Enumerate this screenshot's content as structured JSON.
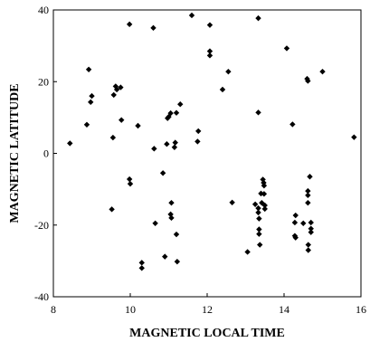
{
  "chart_data": {
    "type": "scatter",
    "title": "",
    "xlabel": "MAGNETIC LOCAL TIME",
    "ylabel": "MAGNETIC LATITUDE",
    "xlim": [
      8,
      16
    ],
    "ylim": [
      -40,
      40
    ],
    "xticks": [
      "8",
      "10",
      "12",
      "14",
      "16"
    ],
    "yticks": [
      "40",
      "20",
      "0",
      "-20",
      "-40"
    ],
    "grid": false,
    "legend": "none",
    "marker": "diamond",
    "marker_color": "#000000",
    "points": [
      {
        "x": 8.43,
        "y": 2.8
      },
      {
        "x": 8.87,
        "y": 8.0
      },
      {
        "x": 8.92,
        "y": 23.4
      },
      {
        "x": 8.97,
        "y": 14.3
      },
      {
        "x": 9.0,
        "y": 16.0
      },
      {
        "x": 9.52,
        "y": -15.6
      },
      {
        "x": 9.55,
        "y": 4.4
      },
      {
        "x": 9.57,
        "y": 16.3
      },
      {
        "x": 9.62,
        "y": 18.7
      },
      {
        "x": 9.65,
        "y": 17.8
      },
      {
        "x": 9.75,
        "y": 18.4
      },
      {
        "x": 9.77,
        "y": 9.3
      },
      {
        "x": 9.98,
        "y": 36.0
      },
      {
        "x": 9.98,
        "y": -7.2
      },
      {
        "x": 10.0,
        "y": -8.5
      },
      {
        "x": 10.2,
        "y": 7.7
      },
      {
        "x": 10.3,
        "y": -30.5
      },
      {
        "x": 10.3,
        "y": -32.0
      },
      {
        "x": 10.6,
        "y": 35.0
      },
      {
        "x": 10.62,
        "y": 1.3
      },
      {
        "x": 10.65,
        "y": -19.5
      },
      {
        "x": 10.85,
        "y": -5.5
      },
      {
        "x": 10.9,
        "y": -28.8
      },
      {
        "x": 10.95,
        "y": 2.6
      },
      {
        "x": 10.97,
        "y": 9.8
      },
      {
        "x": 11.0,
        "y": 10.2
      },
      {
        "x": 11.05,
        "y": 11.2
      },
      {
        "x": 11.07,
        "y": -13.8
      },
      {
        "x": 11.05,
        "y": -17.0
      },
      {
        "x": 11.07,
        "y": -18.0
      },
      {
        "x": 11.15,
        "y": 1.7
      },
      {
        "x": 11.17,
        "y": 3.0
      },
      {
        "x": 11.2,
        "y": 11.3
      },
      {
        "x": 11.2,
        "y": -22.6
      },
      {
        "x": 11.22,
        "y": -30.2
      },
      {
        "x": 11.3,
        "y": 13.7
      },
      {
        "x": 11.6,
        "y": 38.5
      },
      {
        "x": 11.75,
        "y": 3.3
      },
      {
        "x": 11.77,
        "y": 6.2
      },
      {
        "x": 12.07,
        "y": 35.8
      },
      {
        "x": 12.07,
        "y": 28.5
      },
      {
        "x": 12.07,
        "y": 27.3
      },
      {
        "x": 12.4,
        "y": 17.8
      },
      {
        "x": 12.55,
        "y": 22.8
      },
      {
        "x": 12.65,
        "y": -13.7
      },
      {
        "x": 13.05,
        "y": -27.5
      },
      {
        "x": 13.25,
        "y": -14.2
      },
      {
        "x": 13.33,
        "y": 37.7
      },
      {
        "x": 13.33,
        "y": 11.4
      },
      {
        "x": 13.33,
        "y": -15.3
      },
      {
        "x": 13.33,
        "y": -16.5
      },
      {
        "x": 13.35,
        "y": -18.2
      },
      {
        "x": 13.35,
        "y": -21.2
      },
      {
        "x": 13.35,
        "y": -22.5
      },
      {
        "x": 13.37,
        "y": -25.5
      },
      {
        "x": 13.4,
        "y": -11.2
      },
      {
        "x": 13.42,
        "y": -13.8
      },
      {
        "x": 13.45,
        "y": -7.3
      },
      {
        "x": 13.47,
        "y": -8.2
      },
      {
        "x": 13.48,
        "y": -9.0
      },
      {
        "x": 13.48,
        "y": -11.3
      },
      {
        "x": 13.5,
        "y": -14.5
      },
      {
        "x": 13.5,
        "y": -15.5
      },
      {
        "x": 14.07,
        "y": 29.3
      },
      {
        "x": 14.22,
        "y": 8.1
      },
      {
        "x": 14.3,
        "y": -17.3
      },
      {
        "x": 14.28,
        "y": -19.3
      },
      {
        "x": 14.28,
        "y": -23.0
      },
      {
        "x": 14.3,
        "y": -23.5
      },
      {
        "x": 14.5,
        "y": -19.5
      },
      {
        "x": 14.6,
        "y": 20.8
      },
      {
        "x": 14.62,
        "y": 20.2
      },
      {
        "x": 14.62,
        "y": -10.5
      },
      {
        "x": 14.62,
        "y": -11.7
      },
      {
        "x": 14.62,
        "y": -13.8
      },
      {
        "x": 14.63,
        "y": -25.5
      },
      {
        "x": 14.63,
        "y": -27.0
      },
      {
        "x": 14.67,
        "y": -6.5
      },
      {
        "x": 14.7,
        "y": -19.3
      },
      {
        "x": 14.7,
        "y": -21.0
      },
      {
        "x": 14.7,
        "y": -22.0
      },
      {
        "x": 15.0,
        "y": 22.8
      },
      {
        "x": 15.82,
        "y": 4.5
      }
    ]
  }
}
